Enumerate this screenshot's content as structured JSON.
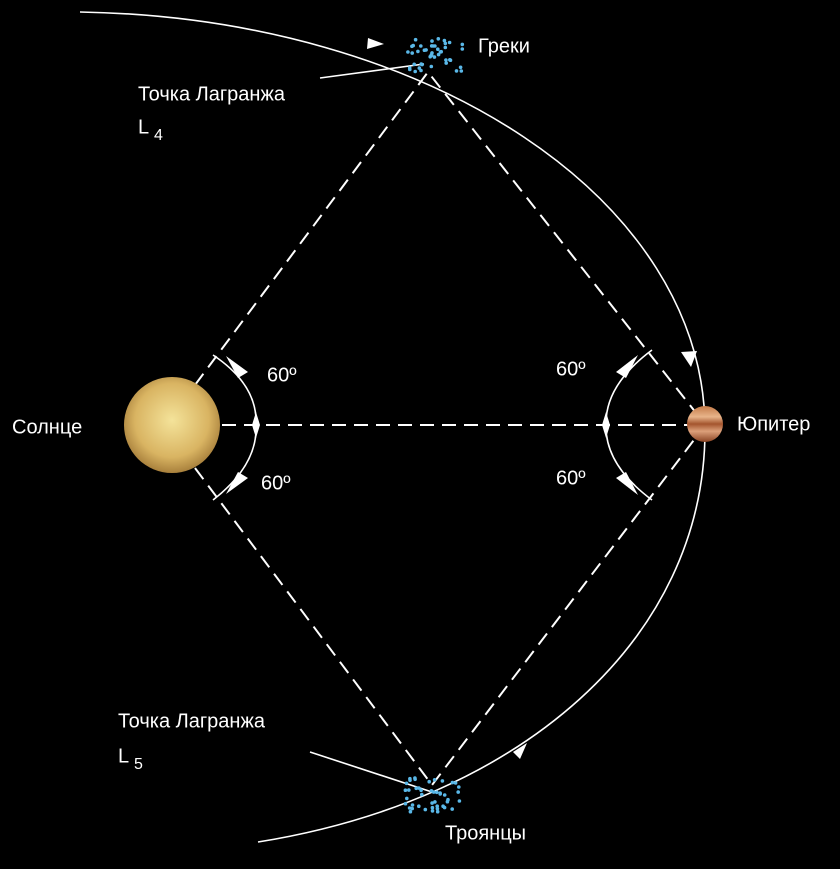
{
  "bodies": {
    "sun": "Солнце",
    "jupiter": "Юпитер"
  },
  "groups": {
    "greeks": "Греки",
    "trojans": "Троянцы"
  },
  "lagrange_points": [
    {
      "label": "Точка Лагранжа",
      "symbol": "L",
      "index": "4"
    },
    {
      "label": "Точка Лагранжа",
      "symbol": "L",
      "index": "5"
    }
  ],
  "angles": [
    "60º",
    "60º",
    "60º",
    "60º"
  ]
}
